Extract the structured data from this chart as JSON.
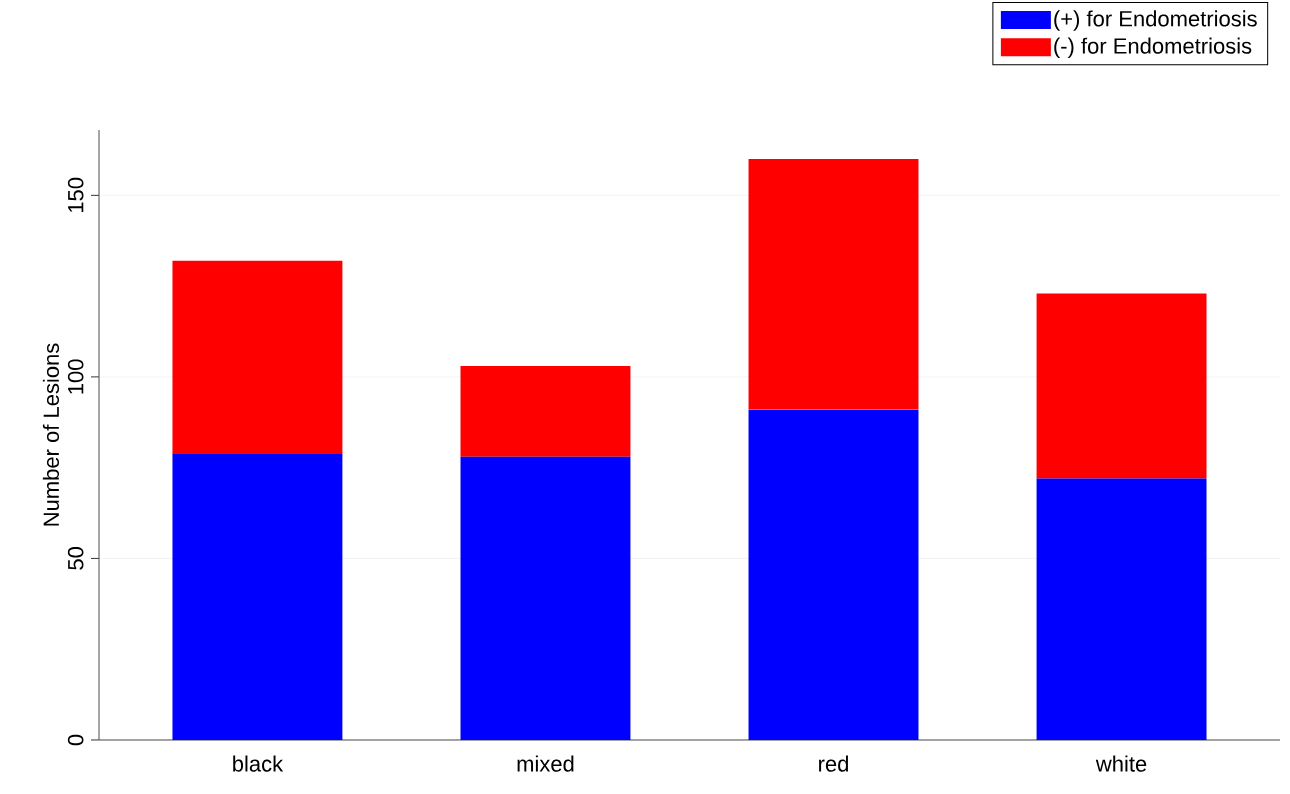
{
  "chart_data": {
    "type": "bar",
    "stacked": true,
    "ylabel": "Number of Lesions",
    "categories": [
      "black",
      "mixed",
      "red",
      "white"
    ],
    "series": [
      {
        "name": "(+) for Endometriosis",
        "color": "#0000ff",
        "values": [
          79,
          78,
          91,
          72
        ]
      },
      {
        "name": "(-) for Endometriosis",
        "color": "#ff0000",
        "values": [
          53,
          25,
          69,
          51
        ]
      }
    ],
    "ylim": [
      0,
      168
    ],
    "yticks": [
      0,
      50,
      100,
      150
    ],
    "grid": "y",
    "legend": "top right"
  }
}
